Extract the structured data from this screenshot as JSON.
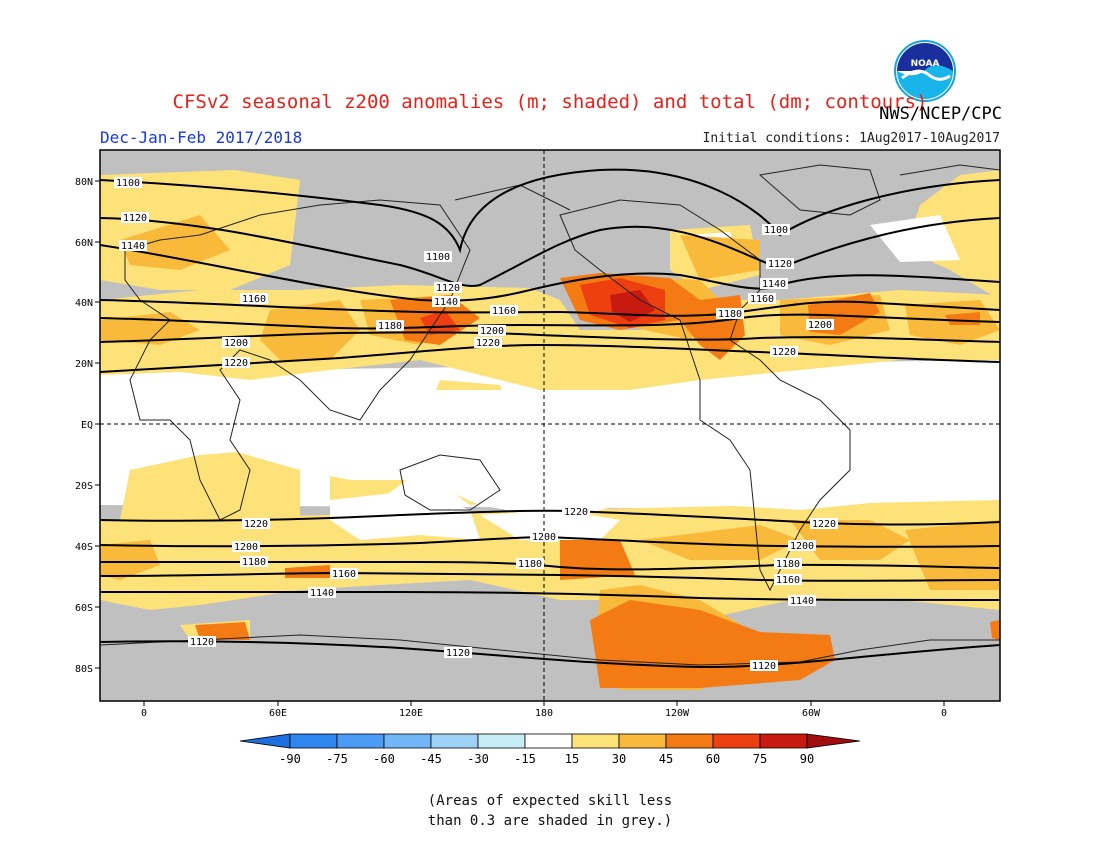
{
  "title": "CFSv2 seasonal z200 anomalies (m; shaded) and total (dm; contours)",
  "agency": "NWS/NCEP/CPC",
  "logo_text": "NOAA",
  "season": "Dec-Jan-Feb 2017/2018",
  "initial_conditions": "Initial conditions: 1Aug2017-10Aug2017",
  "note_line1": "(Areas of expected skill less",
  "note_line2": "than 0.3 are shaded in grey.)",
  "lat_labels": [
    "80N",
    "60N",
    "40N",
    "20N",
    "EQ",
    "20S",
    "40S",
    "60S",
    "80S"
  ],
  "lon_labels": [
    "0",
    "60E",
    "120E",
    "180",
    "120W",
    "60W",
    "0"
  ],
  "colorbar": {
    "ticks": [
      "-90",
      "-75",
      "-60",
      "-45",
      "-30",
      "-15",
      "15",
      "30",
      "45",
      "60",
      "75",
      "90"
    ],
    "colors": [
      "#1d6fe0",
      "#2f86ee",
      "#4c9cf5",
      "#73b6f7",
      "#9fd2f7",
      "#c7eef7",
      "#ffffff",
      "#fde27a",
      "#f9b93a",
      "#f47b13",
      "#ee3f10",
      "#c81b10",
      "#a00d0c"
    ]
  },
  "contour_labels": [
    "1100",
    "1120",
    "1140",
    "1160",
    "1180",
    "1200",
    "1220"
  ],
  "colors": {
    "title": "#e8201a",
    "season": "#1b39d9",
    "skill_grey": "#c0c0c0",
    "c15": "#fde27a",
    "c30": "#f9b93a",
    "c45": "#f47b13",
    "c60": "#ee3f10",
    "c75": "#c81b10"
  }
}
